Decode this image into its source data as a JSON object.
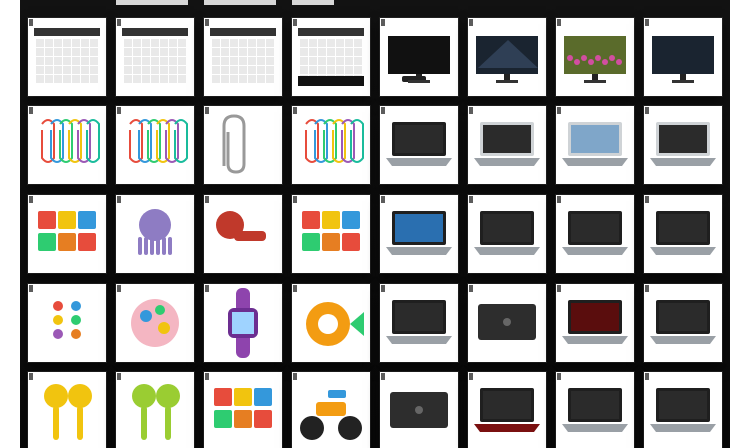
{
  "gallery": {
    "tiles": [
      {
        "row": 0,
        "col": 0,
        "icon": "desk-calendar-icon",
        "bg": "white"
      },
      {
        "row": 0,
        "col": 1,
        "icon": "wall-calendar-icon",
        "bg": "white"
      },
      {
        "row": 0,
        "col": 2,
        "icon": "planner-icon",
        "bg": "white"
      },
      {
        "row": 0,
        "col": 3,
        "icon": "calendar-pad-icon",
        "bg": "white"
      },
      {
        "row": 0,
        "col": 4,
        "icon": "tv-remote-icon",
        "bg": "white"
      },
      {
        "row": 0,
        "col": 5,
        "icon": "tv-icon",
        "bg": "white"
      },
      {
        "row": 0,
        "col": 6,
        "icon": "tv-flowers-icon",
        "bg": "white"
      },
      {
        "row": 0,
        "col": 7,
        "icon": "tv-black-icon",
        "bg": "white"
      },
      {
        "row": 1,
        "col": 0,
        "icon": "paperclip-jar-icon",
        "bg": "white"
      },
      {
        "row": 1,
        "col": 1,
        "icon": "paperclip-hand-icon",
        "bg": "white"
      },
      {
        "row": 1,
        "col": 2,
        "icon": "paperclip-large-icon",
        "bg": "white"
      },
      {
        "row": 1,
        "col": 3,
        "icon": "paperclip-colors-icon",
        "bg": "white"
      },
      {
        "row": 1,
        "col": 4,
        "icon": "laptop-dark-icon",
        "bg": "white"
      },
      {
        "row": 1,
        "col": 5,
        "icon": "laptop-silver-icon",
        "bg": "white"
      },
      {
        "row": 1,
        "col": 6,
        "icon": "macbook-icon",
        "bg": "white"
      },
      {
        "row": 1,
        "col": 7,
        "icon": "chromebook-icon",
        "bg": "white"
      },
      {
        "row": 2,
        "col": 0,
        "icon": "block-stack-icon",
        "bg": "white"
      },
      {
        "row": 2,
        "col": 1,
        "icon": "octopus-toy-icon",
        "bg": "white"
      },
      {
        "row": 2,
        "col": 2,
        "icon": "toy-microphone-icon",
        "bg": "white"
      },
      {
        "row": 2,
        "col": 3,
        "icon": "building-blocks-icon",
        "bg": "white"
      },
      {
        "row": 2,
        "col": 4,
        "icon": "windows-laptop-icon",
        "bg": "white"
      },
      {
        "row": 2,
        "col": 5,
        "icon": "slim-laptop-icon",
        "bg": "white"
      },
      {
        "row": 2,
        "col": 6,
        "icon": "thinkpad-icon",
        "bg": "white"
      },
      {
        "row": 2,
        "col": 7,
        "icon": "dark-laptop-icon",
        "bg": "white"
      },
      {
        "row": 3,
        "col": 0,
        "icon": "toy-remote-icon",
        "bg": "white"
      },
      {
        "row": 3,
        "col": 1,
        "icon": "sensory-ball-icon",
        "bg": "white"
      },
      {
        "row": 3,
        "col": 2,
        "icon": "kid-smartwatch-icon",
        "bg": "white"
      },
      {
        "row": 3,
        "col": 3,
        "icon": "fish-ring-icon",
        "bg": "white"
      },
      {
        "row": 3,
        "col": 4,
        "icon": "laptop-keyboard-icon",
        "bg": "white"
      },
      {
        "row": 3,
        "col": 5,
        "icon": "laptop-lid-icon",
        "bg": "white"
      },
      {
        "row": 3,
        "col": 6,
        "icon": "gaming-laptop-icon",
        "bg": "white"
      },
      {
        "row": 3,
        "col": 7,
        "icon": "acer-laptop-icon",
        "bg": "white"
      },
      {
        "row": 4,
        "col": 0,
        "icon": "maraca-yellow-icon",
        "bg": "white"
      },
      {
        "row": 4,
        "col": 1,
        "icon": "maraca-green-icon",
        "bg": "white"
      },
      {
        "row": 4,
        "col": 2,
        "icon": "lego-blocks-icon",
        "bg": "white"
      },
      {
        "row": 4,
        "col": 3,
        "icon": "tricycle-icon",
        "bg": "white"
      },
      {
        "row": 4,
        "col": 4,
        "icon": "laptop-closed-icon",
        "bg": "white"
      },
      {
        "row": 4,
        "col": 5,
        "icon": "red-keyboard-laptop-icon",
        "bg": "white"
      },
      {
        "row": 4,
        "col": 6,
        "icon": "laptop-open-icon",
        "bg": "white"
      },
      {
        "row": 4,
        "col": 7,
        "icon": "hp-laptop-icon",
        "bg": "white"
      }
    ]
  }
}
